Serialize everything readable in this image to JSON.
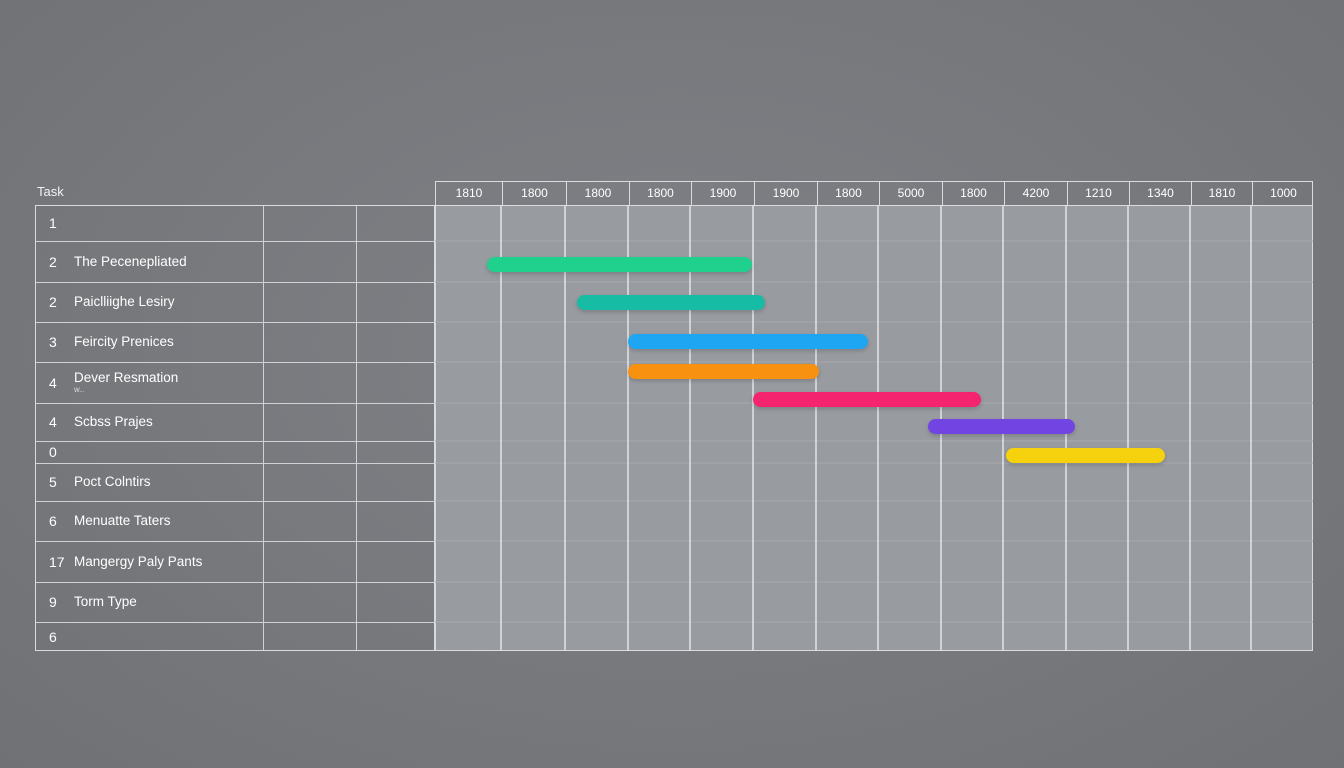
{
  "chart_data": {
    "type": "gantt",
    "task_header": "Task",
    "timeline_labels": [
      "1810",
      "1800",
      "1800",
      "1800",
      "1900",
      "1900",
      "1800",
      "5000",
      "1800",
      "4200",
      "1210",
      "1340",
      "1810",
      "1000"
    ],
    "tasks": [
      {
        "num": "1",
        "name": ""
      },
      {
        "num": "2",
        "name": "The Pecenepliated"
      },
      {
        "num": "2",
        "name": "Paiclliighe Lesiry"
      },
      {
        "num": "3",
        "name": "Feircity Prenices"
      },
      {
        "num": "4",
        "name": "Dever Resmation",
        "sub": "W..."
      },
      {
        "num": "4",
        "name": "Scbss Prajes"
      },
      {
        "num": "0",
        "name": ""
      },
      {
        "num": "5",
        "name": "Poct Colntirs"
      },
      {
        "num": "6",
        "name": "Menuatte Taters"
      },
      {
        "num": "17",
        "name": "Mangergy Paly Pants"
      },
      {
        "num": "9",
        "name": "Torm Type"
      },
      {
        "num": "6",
        "name": ""
      }
    ],
    "bars": [
      {
        "start": 0.8,
        "end": 5.0,
        "color": "#1fd18c"
      },
      {
        "start": 2.2,
        "end": 5.2,
        "color": "#17bca5"
      },
      {
        "start": 3.0,
        "end": 6.85,
        "color": "#1fa6f2"
      },
      {
        "start": 3.0,
        "end": 6.05,
        "color": "#f7910f"
      },
      {
        "start": 5.0,
        "end": 8.65,
        "color": "#f4256e"
      },
      {
        "start": 7.8,
        "end": 10.15,
        "color": "#7245e2"
      },
      {
        "start": 9.05,
        "end": 11.6,
        "color": "#f5d10e"
      }
    ]
  }
}
